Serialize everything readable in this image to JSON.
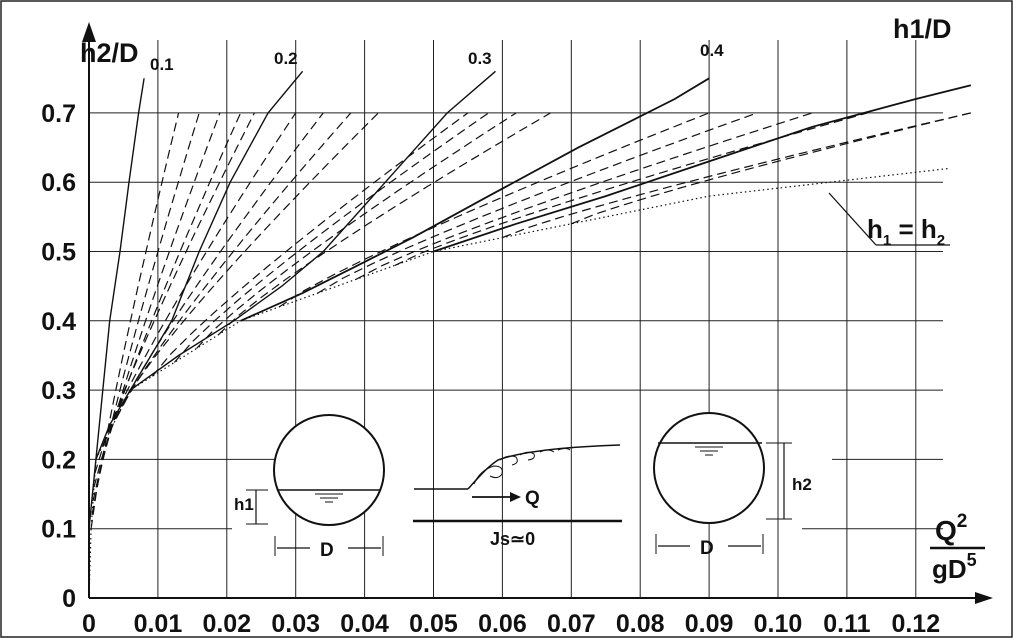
{
  "chart_data": {
    "type": "line",
    "ylabel": "h2/D",
    "series_label": "h1/D",
    "xlabel_num": "Q",
    "xlabel_num_sup": "2",
    "xlabel_den": "gD",
    "xlabel_den_sup": "5",
    "xlim": [
      0,
      0.12
    ],
    "ylim": [
      0,
      0.7
    ],
    "x_ticks": [
      "0",
      "0.01",
      "0.02",
      "0.03",
      "0.04",
      "0.05",
      "0.06",
      "0.07",
      "0.08",
      "0.09",
      "0.10",
      "0.11",
      "0.12"
    ],
    "y_ticks": [
      "0",
      "0.1",
      "0.2",
      "0.3",
      "0.4",
      "0.5",
      "0.6",
      "0.7"
    ],
    "grid": true,
    "curve_labels": [
      "0.1",
      "0.2",
      "0.3",
      "0.4"
    ],
    "limit_label": "h1 = h2",
    "solid_curves": [
      {
        "h1": "0.1",
        "points": [
          [
            0,
            0.1
          ],
          [
            0.001,
            0.2
          ],
          [
            0.002,
            0.3
          ],
          [
            0.003,
            0.4
          ],
          [
            0.0045,
            0.5
          ],
          [
            0.0058,
            0.6
          ],
          [
            0.0072,
            0.7
          ],
          [
            0.008,
            0.75
          ]
        ]
      },
      {
        "h1": "0.2",
        "points": [
          [
            0.001,
            0.2
          ],
          [
            0.003,
            0.25
          ],
          [
            0.006,
            0.3
          ],
          [
            0.009,
            0.35
          ],
          [
            0.012,
            0.4
          ],
          [
            0.016,
            0.5
          ],
          [
            0.0205,
            0.6
          ],
          [
            0.026,
            0.7
          ],
          [
            0.031,
            0.76
          ]
        ]
      },
      {
        "h1": "0.3",
        "points": [
          [
            0.006,
            0.3
          ],
          [
            0.013,
            0.35
          ],
          [
            0.021,
            0.4
          ],
          [
            0.028,
            0.45
          ],
          [
            0.034,
            0.5
          ],
          [
            0.043,
            0.6
          ],
          [
            0.052,
            0.7
          ],
          [
            0.059,
            0.76
          ]
        ]
      },
      {
        "h1": "0.4",
        "points": [
          [
            0.022,
            0.4
          ],
          [
            0.031,
            0.44
          ],
          [
            0.039,
            0.48
          ],
          [
            0.047,
            0.52
          ],
          [
            0.058,
            0.58
          ],
          [
            0.071,
            0.65
          ],
          [
            0.085,
            0.72
          ],
          [
            0.09,
            0.75
          ]
        ]
      },
      {
        "h1": "0.5",
        "points": [
          [
            0.05,
            0.5
          ],
          [
            0.062,
            0.54
          ],
          [
            0.075,
            0.58
          ],
          [
            0.09,
            0.63
          ],
          [
            0.105,
            0.68
          ],
          [
            0.12,
            0.72
          ],
          [
            0.128,
            0.74
          ]
        ]
      }
    ],
    "dashed_curves": [
      {
        "start": 0.1,
        "end": 0.013
      },
      {
        "start": 0.12,
        "end": 0.016
      },
      {
        "start": 0.14,
        "end": 0.019
      },
      {
        "start": 0.16,
        "end": 0.022
      },
      {
        "start": 0.18,
        "end": 0.024
      },
      {
        "start": 0.22,
        "end": 0.03
      },
      {
        "start": 0.24,
        "end": 0.034
      },
      {
        "start": 0.26,
        "end": 0.038
      },
      {
        "start": 0.28,
        "end": 0.042
      },
      {
        "start": 0.32,
        "end": 0.055
      },
      {
        "start": 0.34,
        "end": 0.058
      },
      {
        "start": 0.36,
        "end": 0.062
      },
      {
        "start": 0.38,
        "end": 0.067
      },
      {
        "start": 0.42,
        "end": 0.09
      },
      {
        "start": 0.44,
        "end": 0.097
      },
      {
        "start": 0.46,
        "end": 0.105
      },
      {
        "start": 0.48,
        "end": 0.113
      },
      {
        "start": 0.52,
        "end": 0.128
      },
      {
        "start": 0.54,
        "end": 0.128
      }
    ],
    "limit_curve": [
      [
        0,
        0
      ],
      [
        0.0003,
        0.1
      ],
      [
        0.001,
        0.2
      ],
      [
        0.006,
        0.3
      ],
      [
        0.022,
        0.4
      ],
      [
        0.05,
        0.5
      ],
      [
        0.09,
        0.58
      ],
      [
        0.125,
        0.62
      ]
    ]
  },
  "sketch": {
    "left_depth": "h1",
    "right_depth": "h2",
    "diameter": "D",
    "flow": "Q",
    "slope": "Js≃0"
  }
}
